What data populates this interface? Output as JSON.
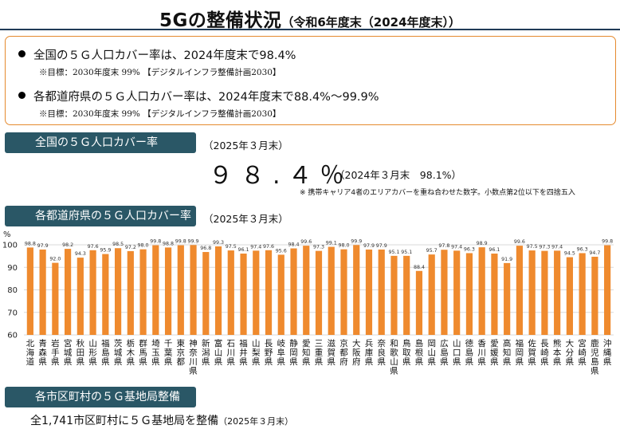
{
  "header": {
    "title": "5Gの整備状況",
    "subtitle": "（令和6年度末（2024年度末））"
  },
  "summary_box": {
    "bullet1": "全国の５Ｇ人口カバー率は、2024年度末で98.4%",
    "note1": "※目標：2030年度末 99% 【デジタルインフラ整備計画2030】",
    "bullet2": "各都道府県の５Ｇ人口カバー率は、2024年度末で88.4%～99.9%",
    "note2": "※目標：2030年度末 99% 【デジタルインフラ整備計画2030】"
  },
  "national": {
    "label": "全国の５Ｇ人口カバー率",
    "date": "（2025年３月末）",
    "value": "９８.４％",
    "previous": "（2024年３月末　98.1%）",
    "footnote": "※ 携帯キャリア4者のエリアカバーを重ね合わせた数字。小数点第2位以下を四捨五入"
  },
  "prefecture_section": {
    "label": "各都道府県の５Ｇ人口カバー率",
    "date": "（2025年３月末）"
  },
  "municipal": {
    "label": "各市区町村の５Ｇ基地局整備",
    "text": "全1,741市区町村に５Ｇ基地局を整備",
    "date": "（2025年３月末）"
  },
  "colors": {
    "bar": "#ef8a2e",
    "tab": "#2a5766",
    "box_border": "#e58a2e",
    "grid": "#d9d9d9"
  },
  "chart_data": {
    "type": "bar",
    "ylabel": "%",
    "ylim": [
      60,
      100
    ],
    "yticks": [
      60,
      70,
      80,
      90,
      100
    ],
    "grid": true,
    "categories": [
      "北海道",
      "青森県",
      "岩手県",
      "宮城県",
      "秋田県",
      "山形県",
      "福島県",
      "茨城県",
      "栃木県",
      "群馬県",
      "埼玉県",
      "千葉県",
      "東京都",
      "神奈川県",
      "新潟県",
      "富山県",
      "石川県",
      "福井県",
      "山梨県",
      "長野県",
      "岐阜県",
      "静岡県",
      "愛知県",
      "三重県",
      "滋賀県",
      "京都府",
      "大阪府",
      "兵庫県",
      "奈良県",
      "和歌山県",
      "鳥取県",
      "島根県",
      "岡山県",
      "広島県",
      "山口県",
      "徳島県",
      "香川県",
      "愛媛県",
      "高知県",
      "福岡県",
      "佐賀県",
      "長崎県",
      "熊本県",
      "大分県",
      "宮崎県",
      "鹿児島県",
      "沖縄県"
    ],
    "values": [
      98.8,
      97.9,
      92.0,
      98.2,
      94.3,
      97.6,
      95.9,
      98.5,
      97.2,
      98.0,
      99.8,
      98.8,
      99.8,
      99.9,
      96.8,
      99.3,
      97.5,
      96.1,
      97.4,
      97.6,
      95.6,
      98.4,
      99.6,
      97.3,
      99.1,
      98.0,
      99.9,
      97.9,
      97.9,
      95.1,
      95.1,
      88.4,
      95.7,
      97.8,
      97.4,
      96.3,
      98.9,
      96.1,
      91.9,
      99.6,
      97.5,
      97.3,
      97.4,
      94.5,
      96.3,
      94.7,
      99.8
    ]
  }
}
